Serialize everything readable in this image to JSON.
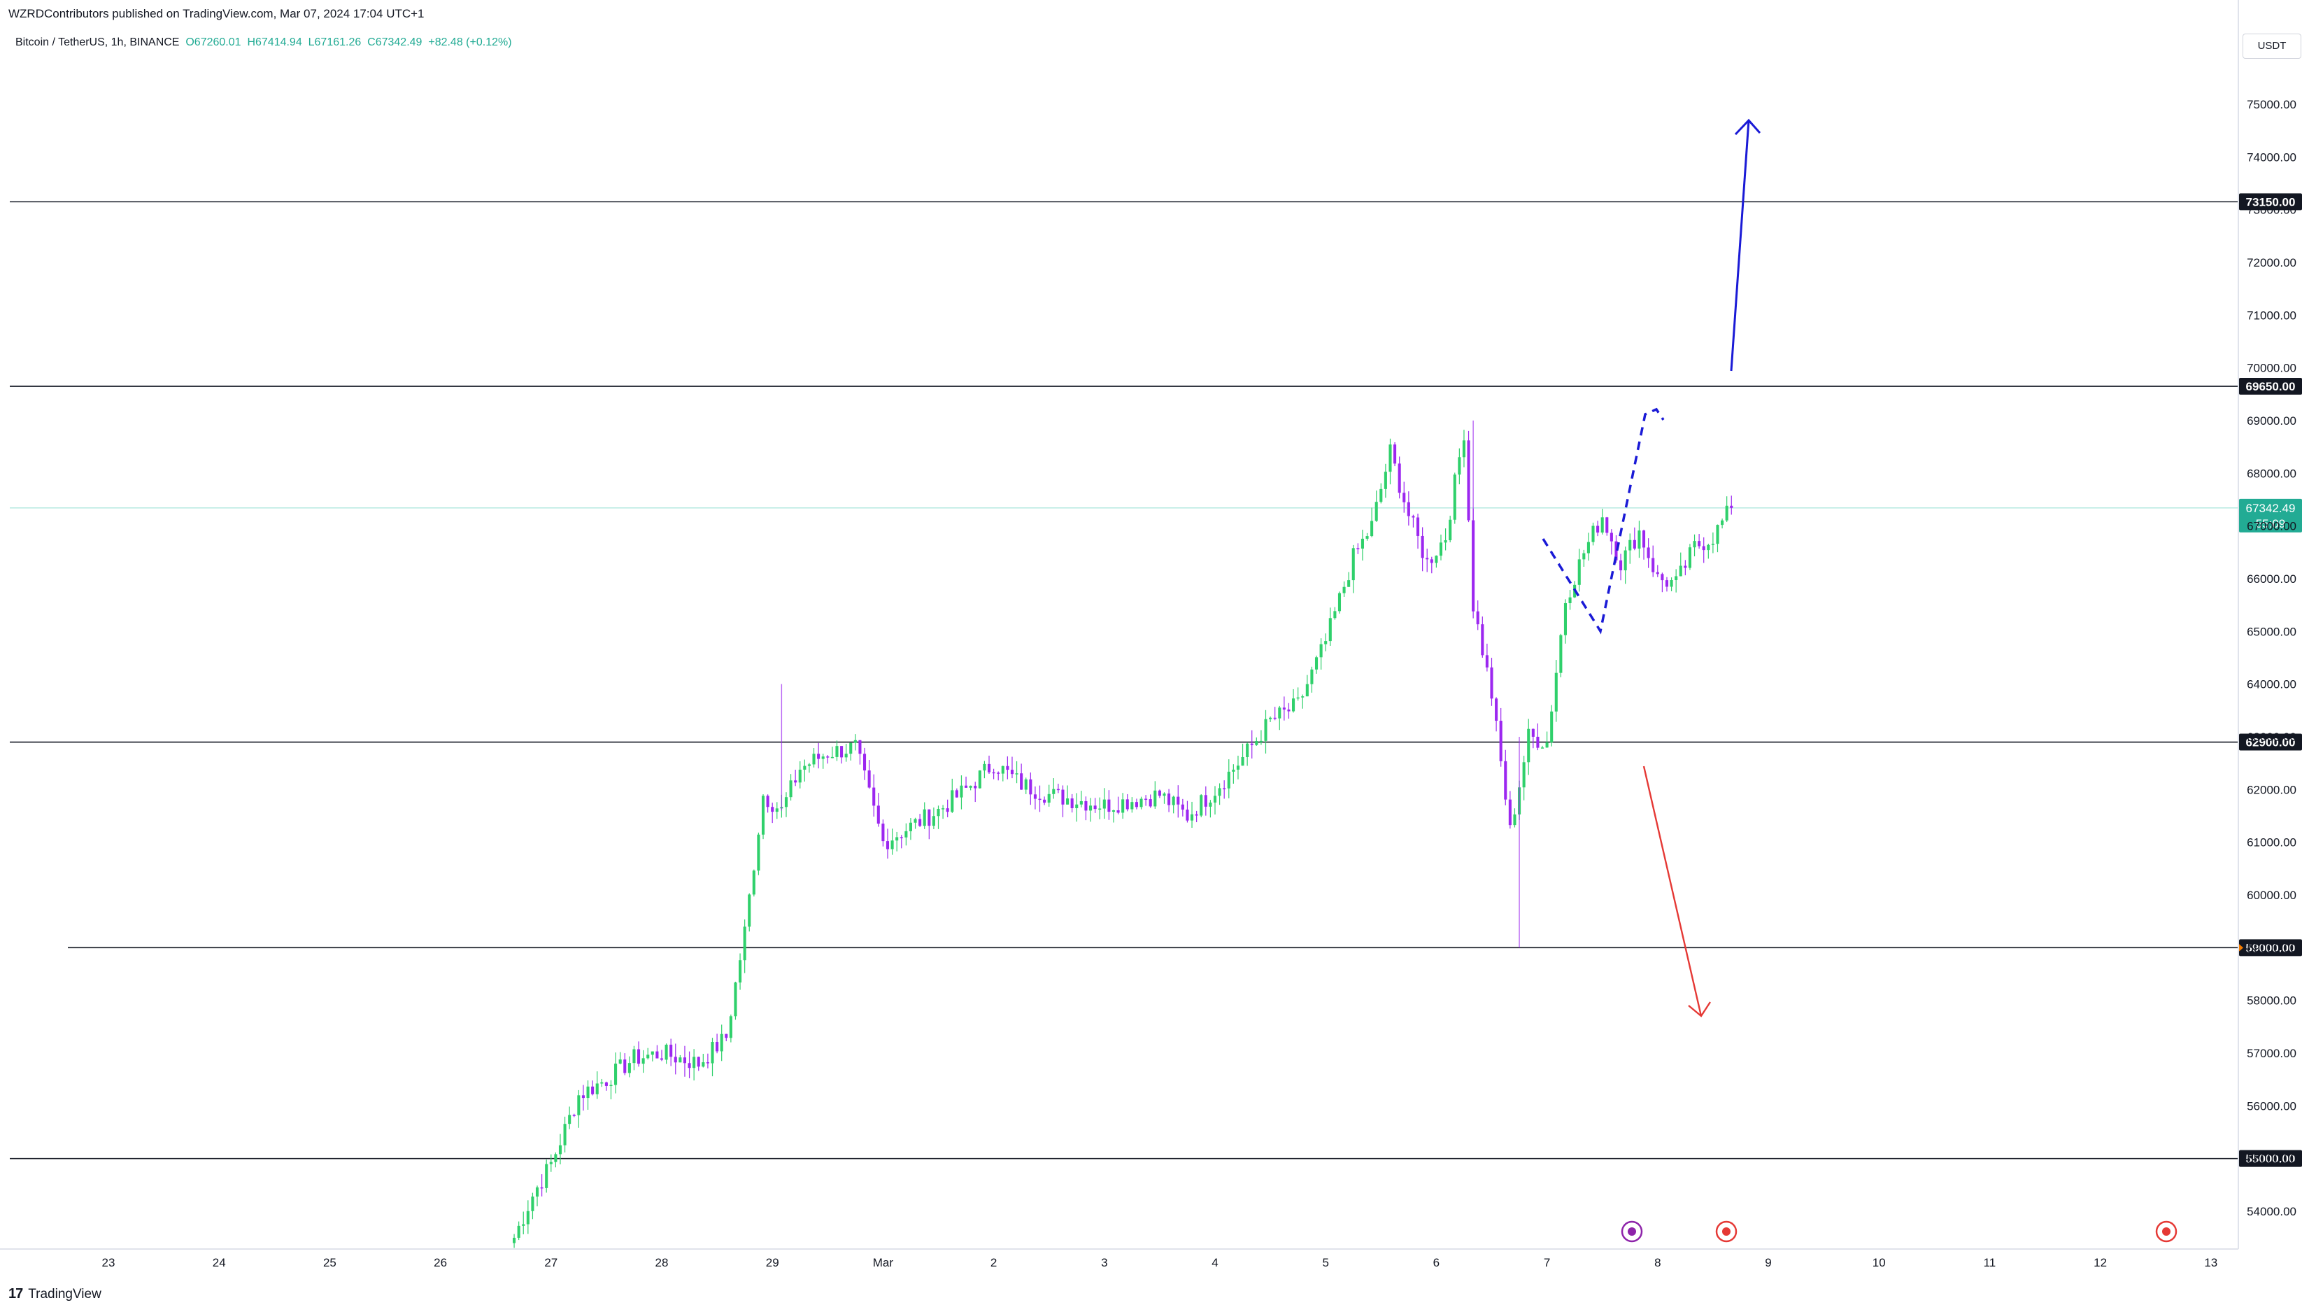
{
  "header": {
    "published": "WZRDContributors published on TradingView.com, Mar 07, 2024 17:04 UTC+1",
    "symbol": "Bitcoin / TetherUS, 1h, BINANCE",
    "open": "O67260.01",
    "high": "H67414.94",
    "low": "L67161.26",
    "close": "C67342.49",
    "change": "+82.48 (+0.12%)"
  },
  "currency_button": "USDT",
  "footer": {
    "brand": "TradingView"
  },
  "colors": {
    "up": "#22ab94",
    "up_candle": "#2fd06b",
    "down_candle": "#9c27f0",
    "bull_arrow": "#1a1ad6",
    "bear_arrow": "#e53935",
    "price_tag": "#22ab94"
  },
  "chart_data": {
    "type": "candlestick",
    "timeframe": "1h",
    "ylim": [
      53300,
      76200
    ],
    "y_ticks": [
      54000,
      55000,
      56000,
      57000,
      58000,
      59000,
      60000,
      61000,
      62000,
      63000,
      64000,
      65000,
      66000,
      67000,
      68000,
      69000,
      70000,
      71000,
      72000,
      73000,
      74000,
      75000
    ],
    "x_tick_labels": [
      "23",
      "24",
      "25",
      "26",
      "27",
      "28",
      "29",
      "Mar",
      "2",
      "3",
      "4",
      "5",
      "6",
      "7",
      "8",
      "9",
      "10",
      "11",
      "12",
      "13"
    ],
    "horizontal_levels": [
      {
        "label": "73150.00",
        "value": 73150
      },
      {
        "label": "69650.00",
        "value": 69650
      },
      {
        "label": "62900.00",
        "value": 62900
      },
      {
        "label": "59000.00",
        "value": 59000
      },
      {
        "label": "55000.00",
        "value": 55000
      }
    ],
    "last_price": {
      "label": "67342.49",
      "value": 67342.49,
      "countdown": "55:09"
    },
    "close_path": [
      [
        "2024-02-26 16:00",
        53500
      ],
      [
        "2024-02-26 20:00",
        54300
      ],
      [
        "2024-02-27 00:00",
        54900
      ],
      [
        "2024-02-27 06:00",
        56200
      ],
      [
        "2024-02-27 12:00",
        56500
      ],
      [
        "2024-02-27 18:00",
        56900
      ],
      [
        "2024-02-28 00:00",
        57000
      ],
      [
        "2024-02-28 08:00",
        56800
      ],
      [
        "2024-02-28 14:00",
        57300
      ],
      [
        "2024-02-28 18:00",
        59300
      ],
      [
        "2024-02-28 22:00",
        61900
      ],
      [
        "2024-02-29 02:00",
        61600
      ],
      [
        "2024-02-29 06:00",
        62400
      ],
      [
        "2024-02-29 12:00",
        62700
      ],
      [
        "2024-02-29 18:00",
        62800
      ],
      [
        "2024-03-01 00:00",
        61000
      ],
      [
        "2024-03-01 06:00",
        61300
      ],
      [
        "2024-03-01 12:00",
        61600
      ],
      [
        "2024-03-01 18:00",
        62000
      ],
      [
        "2024-03-02 00:00",
        62500
      ],
      [
        "2024-03-02 06:00",
        62100
      ],
      [
        "2024-03-02 12:00",
        61900
      ],
      [
        "2024-03-02 18:00",
        61800
      ],
      [
        "2024-03-03 00:00",
        61700
      ],
      [
        "2024-03-03 12:00",
        61900
      ],
      [
        "2024-03-03 18:00",
        61500
      ],
      [
        "2024-03-04 00:00",
        62000
      ],
      [
        "2024-03-04 06:00",
        62600
      ],
      [
        "2024-03-04 12:00",
        63300
      ],
      [
        "2024-03-04 18:00",
        63600
      ],
      [
        "2024-03-05 00:00",
        64800
      ],
      [
        "2024-03-05 06:00",
        66400
      ],
      [
        "2024-03-05 10:00",
        67000
      ],
      [
        "2024-03-05 14:00",
        68400
      ],
      [
        "2024-03-05 18:00",
        67200
      ],
      [
        "2024-03-05 22:00",
        66300
      ],
      [
        "2024-03-06 02:00",
        66800
      ],
      [
        "2024-03-06 06:00",
        68800
      ],
      [
        "2024-03-06 08:00",
        65500
      ],
      [
        "2024-03-06 12:00",
        63800
      ],
      [
        "2024-03-06 16:00",
        61200
      ],
      [
        "2024-03-06 20:00",
        63000
      ],
      [
        "2024-03-07 00:00",
        62900
      ],
      [
        "2024-03-07 04:00",
        65600
      ],
      [
        "2024-03-07 08:00",
        66500
      ],
      [
        "2024-03-07 12:00",
        67200
      ],
      [
        "2024-03-07 16:00",
        66300
      ],
      [
        "2024-03-07 20:00",
        66900
      ],
      [
        "2024-03-08 00:00",
        66000
      ],
      [
        "2024-03-08 04:00",
        65900
      ],
      [
        "2024-03-08 08:00",
        66600
      ],
      [
        "2024-03-08 12:00",
        66800
      ],
      [
        "2024-03-08 16:00",
        67342.49
      ]
    ],
    "extreme_wicks": [
      {
        "time": "2024-02-29 02:00",
        "high": 64000
      },
      {
        "time": "2024-03-06 08:00",
        "high": 69000
      },
      {
        "time": "2024-03-06 18:00",
        "low": 59000
      }
    ],
    "annotations": [
      {
        "type": "arrow",
        "direction": "up",
        "color": "#1a1ad6"
      },
      {
        "type": "arrow",
        "direction": "down",
        "color": "#e53935"
      },
      {
        "type": "dashed-path",
        "color": "#1a1ad6"
      }
    ]
  }
}
